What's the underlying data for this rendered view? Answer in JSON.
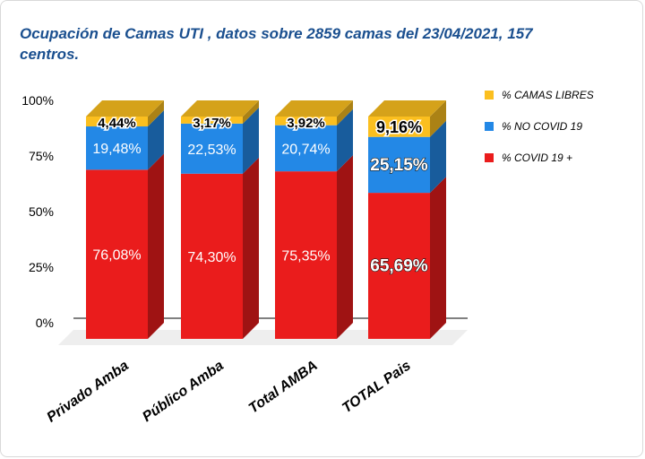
{
  "chart_data": {
    "type": "bar",
    "stacked": true,
    "title": "Ocupación de Camas UTI , datos sobre 2859 camas del 23/04/2021, 157 centros.",
    "categories": [
      "Privado Amba",
      "Público Amba",
      "Total AMBA",
      "TOTAL Pais"
    ],
    "series": [
      {
        "name": "% COVID 19 +",
        "color": "#ea1c1c",
        "values": [
          76.08,
          74.3,
          75.35,
          65.69
        ],
        "labels": [
          "76,08%",
          "74,30%",
          "75,35%",
          "65,69%"
        ]
      },
      {
        "name": "% NO COVID 19",
        "color": "#2388e6",
        "values": [
          19.48,
          22.53,
          20.74,
          25.15
        ],
        "labels": [
          "19,48%",
          "22,53%",
          "20,74%",
          "25,15%"
        ]
      },
      {
        "name": "% CAMAS LIBRES",
        "color": "#fbbf1f",
        "values": [
          4.44,
          3.17,
          3.92,
          9.16
        ],
        "labels": [
          "4,44%",
          "3,17%",
          "3,92%",
          "9,16%"
        ]
      }
    ],
    "yticks": [
      "0%",
      "25%",
      "50%",
      "75%",
      "100%"
    ],
    "ylim": [
      0,
      100
    ],
    "grid": false,
    "legend_position": "top-right"
  }
}
